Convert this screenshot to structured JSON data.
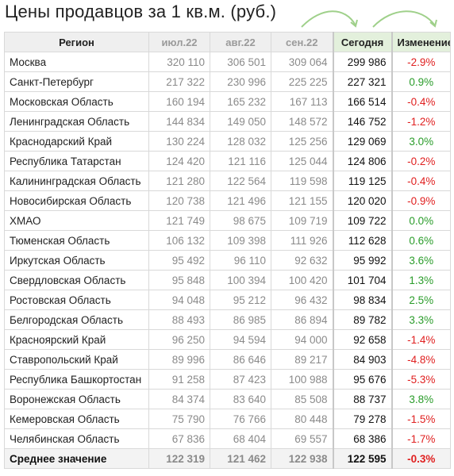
{
  "title": "Цены продавцов за 1 кв.м. (руб.)",
  "header": {
    "region": "Регион",
    "months": [
      "июл.22",
      "авг.22",
      "сен.22"
    ],
    "today": "Сегодня",
    "change": "Изменение"
  },
  "colors": {
    "positive": "#2a9c2a",
    "negative": "#e02020",
    "header_bg": "#efefef",
    "highlight_header_bg": "#e3f0dc",
    "arrow": "#9fd08a"
  },
  "rows": [
    {
      "region": "Москва",
      "jul": "320 110",
      "aug": "306 501",
      "sep": "309 064",
      "today": "299 986",
      "change": "-2.9%",
      "trend": "neg"
    },
    {
      "region": "Санкт-Петербург",
      "jul": "217 322",
      "aug": "230 996",
      "sep": "225 225",
      "today": "227 321",
      "change": "0.9%",
      "trend": "pos"
    },
    {
      "region": "Московская Область",
      "jul": "160 194",
      "aug": "165 232",
      "sep": "167 113",
      "today": "166 514",
      "change": "-0.4%",
      "trend": "neg"
    },
    {
      "region": "Ленинградская Область",
      "jul": "144 834",
      "aug": "149 050",
      "sep": "148 572",
      "today": "146 752",
      "change": "-1.2%",
      "trend": "neg"
    },
    {
      "region": "Краснодарский Край",
      "jul": "130 224",
      "aug": "128 032",
      "sep": "125 256",
      "today": "129 069",
      "change": "3.0%",
      "trend": "pos"
    },
    {
      "region": "Республика Татарстан",
      "jul": "124 420",
      "aug": "121 116",
      "sep": "125 044",
      "today": "124 806",
      "change": "-0.2%",
      "trend": "neg"
    },
    {
      "region": "Калининградская Область",
      "jul": "121 280",
      "aug": "122 564",
      "sep": "119 598",
      "today": "119 125",
      "change": "-0.4%",
      "trend": "neg"
    },
    {
      "region": "Новосибирская Область",
      "jul": "120 738",
      "aug": "121 496",
      "sep": "121 155",
      "today": "120 020",
      "change": "-0.9%",
      "trend": "neg"
    },
    {
      "region": "ХМАО",
      "jul": "121 749",
      "aug": "98 675",
      "sep": "109 719",
      "today": "109 722",
      "change": "0.0%",
      "trend": "pos"
    },
    {
      "region": "Тюменская Область",
      "jul": "106 132",
      "aug": "109 398",
      "sep": "111 926",
      "today": "112 628",
      "change": "0.6%",
      "trend": "pos"
    },
    {
      "region": "Иркутская Область",
      "jul": "95 492",
      "aug": "96 110",
      "sep": "92 632",
      "today": "95 992",
      "change": "3.6%",
      "trend": "pos"
    },
    {
      "region": "Свердловская Область",
      "jul": "95 848",
      "aug": "100 394",
      "sep": "100 420",
      "today": "101 704",
      "change": "1.3%",
      "trend": "pos"
    },
    {
      "region": "Ростовская Область",
      "jul": "94 048",
      "aug": "95 212",
      "sep": "96 432",
      "today": "98 834",
      "change": "2.5%",
      "trend": "pos"
    },
    {
      "region": "Белгородская Область",
      "jul": "88 493",
      "aug": "86 985",
      "sep": "86 894",
      "today": "89 782",
      "change": "3.3%",
      "trend": "pos"
    },
    {
      "region": "Красноярский Край",
      "jul": "96 250",
      "aug": "94 594",
      "sep": "94 000",
      "today": "92 658",
      "change": "-1.4%",
      "trend": "neg"
    },
    {
      "region": "Ставропольский Край",
      "jul": "89 996",
      "aug": "86 646",
      "sep": "89 217",
      "today": "84 903",
      "change": "-4.8%",
      "trend": "neg"
    },
    {
      "region": "Республика Башкортостан",
      "jul": "91 258",
      "aug": "87 423",
      "sep": "100 988",
      "today": "95 676",
      "change": "-5.3%",
      "trend": "neg"
    },
    {
      "region": "Воронежская Область",
      "jul": "84 374",
      "aug": "83 640",
      "sep": "85 508",
      "today": "88 737",
      "change": "3.8%",
      "trend": "pos"
    },
    {
      "region": "Кемеровская Область",
      "jul": "75 790",
      "aug": "76 766",
      "sep": "80 448",
      "today": "79 278",
      "change": "-1.5%",
      "trend": "neg"
    },
    {
      "region": "Челябинская Область",
      "jul": "67 836",
      "aug": "68 404",
      "sep": "69 557",
      "today": "68 386",
      "change": "-1.7%",
      "trend": "neg"
    }
  ],
  "average": {
    "region": "Среднее значение",
    "jul": "122 319",
    "aug": "121 462",
    "sep": "122 938",
    "today": "122 595",
    "change": "-0.3%",
    "trend": "neg"
  }
}
